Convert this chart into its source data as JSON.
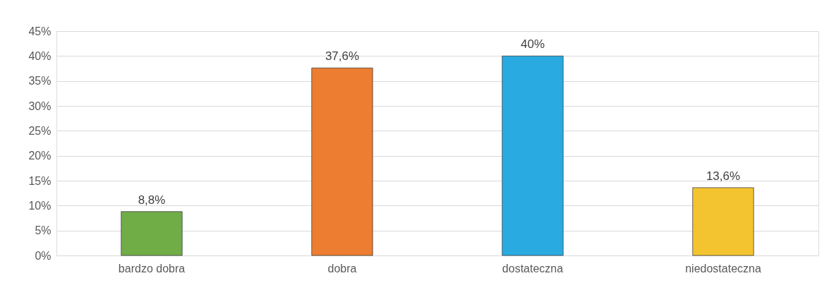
{
  "chart_data": {
    "type": "bar",
    "categories": [
      "bardzo dobra",
      "dobra",
      "dostateczna",
      "niedostateczna"
    ],
    "values": [
      8.8,
      37.6,
      40,
      13.6
    ],
    "colors": [
      "#70ad47",
      "#ed7d31",
      "#29abe2",
      "#f4c430"
    ],
    "value_labels": [
      "8,8%",
      "37,6%",
      "40%",
      "13,6%"
    ],
    "ylim": [
      0,
      45
    ],
    "yticks": [
      {
        "value": 0,
        "label": "0%"
      },
      {
        "value": 5,
        "label": "5%"
      },
      {
        "value": 10,
        "label": "10%"
      },
      {
        "value": 15,
        "label": "15%"
      },
      {
        "value": 20,
        "label": "20%"
      },
      {
        "value": 25,
        "label": "25%"
      },
      {
        "value": 30,
        "label": "30%"
      },
      {
        "value": 35,
        "label": "35%"
      },
      {
        "value": 40,
        "label": "40%"
      },
      {
        "value": 45,
        "label": "45%"
      }
    ],
    "grid": "y"
  }
}
